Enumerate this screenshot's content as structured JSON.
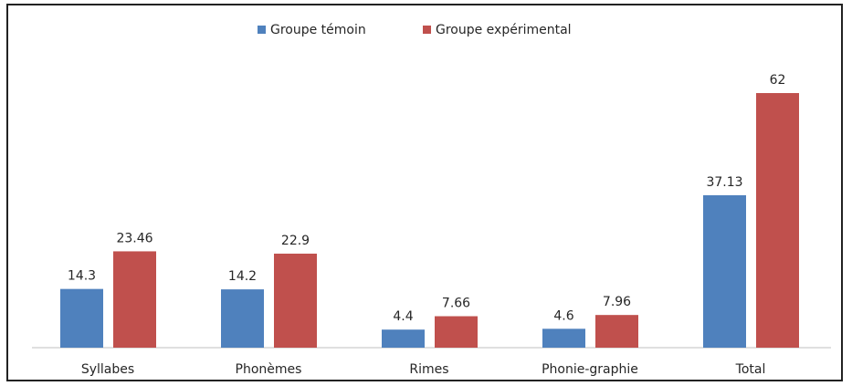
{
  "chart_data": {
    "type": "bar",
    "categories": [
      "Syllabes",
      "Phonèmes",
      "Rimes",
      "Phonie-graphie",
      "Total"
    ],
    "series": [
      {
        "name": "Groupe témoin",
        "color": "#4f81bd",
        "values": [
          14.3,
          14.2,
          4.4,
          4.6,
          37.13
        ]
      },
      {
        "name": "Groupe expérimental",
        "color": "#c0504d",
        "values": [
          23.46,
          22.9,
          7.66,
          7.96,
          62
        ]
      }
    ],
    "ylim": [
      0,
      70
    ],
    "legend": "top"
  }
}
